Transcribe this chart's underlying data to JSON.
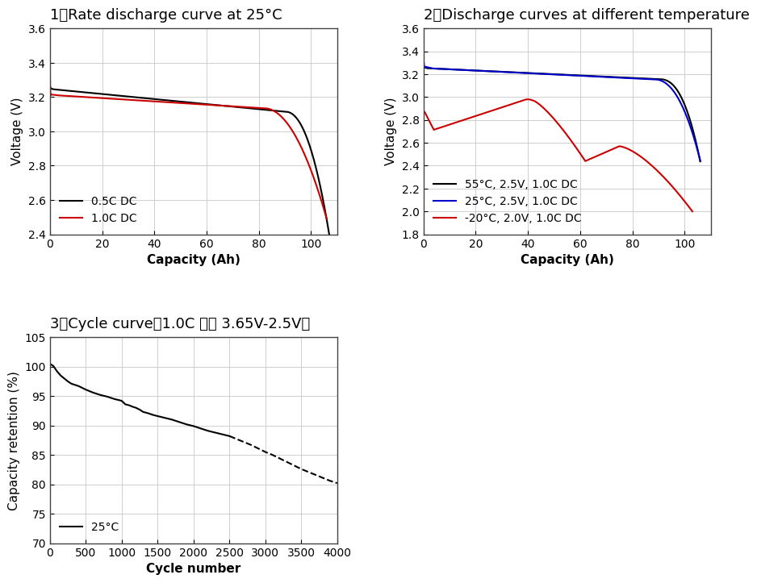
{
  "title1": "1、Rate discharge curve at 25°C",
  "title2": "2、Discharge curves at different temperature",
  "title3": "3、Cycle curve（1.0C 充放 3.65V-2.5V）",
  "plot1": {
    "xlabel": "Capacity (Ah)",
    "ylabel": "Voltage (V)",
    "xlim": [
      0,
      110
    ],
    "ylim": [
      2.4,
      3.6
    ],
    "xticks": [
      0,
      20,
      40,
      60,
      80,
      100
    ],
    "yticks": [
      2.4,
      2.6,
      2.8,
      3.0,
      3.2,
      3.4,
      3.6
    ],
    "legend": [
      "0.5C DC",
      "1.0C DC"
    ],
    "legend_colors": [
      "#000000",
      "#cc0000"
    ]
  },
  "plot2": {
    "xlabel": "Capacity (Ah)",
    "ylabel": "Voltage (V)",
    "xlim": [
      0,
      110
    ],
    "ylim": [
      1.8,
      3.6
    ],
    "xticks": [
      0,
      20,
      40,
      60,
      80,
      100
    ],
    "yticks": [
      1.8,
      2.0,
      2.2,
      2.4,
      2.6,
      2.8,
      3.0,
      3.2,
      3.4,
      3.6
    ],
    "legend": [
      "55°C, 2.5V, 1.0C DC",
      "25°C, 2.5V, 1.0C DC",
      "-20°C, 2.0V, 1.0C DC"
    ],
    "legend_colors": [
      "#000000",
      "#0000cc",
      "#cc0000"
    ]
  },
  "plot3": {
    "xlabel": "Cycle number",
    "ylabel": "Capacity retention (%)",
    "xlim": [
      0,
      4000
    ],
    "ylim": [
      70,
      105
    ],
    "xticks": [
      0,
      500,
      1000,
      1500,
      2000,
      2500,
      3000,
      3500,
      4000
    ],
    "yticks": [
      70,
      75,
      80,
      85,
      90,
      95,
      100,
      105
    ],
    "legend": [
      "25°C"
    ],
    "legend_colors": [
      "#000000"
    ]
  },
  "grid_color": "#c8c8c8",
  "grid_linewidth": 0.6,
  "line_linewidth": 1.5,
  "bg_color": "#ffffff",
  "title_color": "#000000",
  "title_fontsize": 13,
  "axis_label_fontsize": 11,
  "tick_fontsize": 10,
  "legend_fontsize": 10
}
